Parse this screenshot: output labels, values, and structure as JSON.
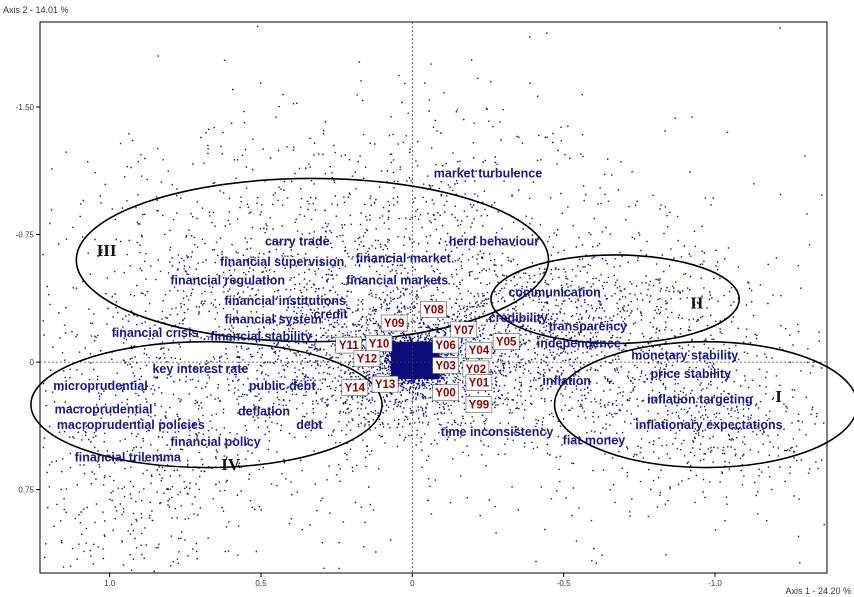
{
  "chart_data": {
    "type": "scatter",
    "xlabel": "Axis 1 - 24.20 %",
    "ylabel": "Axis 2 - 14.01 %",
    "x_ticks": [
      1.0,
      0.5,
      0,
      -0.5,
      -1.0
    ],
    "x_tick_labels": [
      "1.0",
      "0.5",
      "0",
      "-0.5",
      "-1.0"
    ],
    "y_ticks": [
      -1.5,
      -0.75,
      0,
      0.75
    ],
    "y_tick_labels": [
      "-1.50",
      "-0.75",
      "0",
      "0.75"
    ],
    "xlim": [
      1.23,
      -1.37
    ],
    "ylim": [
      -2.0,
      1.24
    ],
    "point_color": "#0b0b7a",
    "term_color": "#1a1a80",
    "year_color": "#8b0000",
    "terms": [
      {
        "label": "market turbulence",
        "x": -0.25,
        "y": -1.11
      },
      {
        "label": "carry trade",
        "x": 0.38,
        "y": -0.71
      },
      {
        "label": "herd behaviour",
        "x": -0.27,
        "y": -0.71
      },
      {
        "label": "financial supervision",
        "x": 0.43,
        "y": -0.59
      },
      {
        "label": "financial market",
        "x": 0.03,
        "y": -0.61
      },
      {
        "label": "financial regulation",
        "x": 0.61,
        "y": -0.48
      },
      {
        "label": "financial markets",
        "x": 0.05,
        "y": -0.48
      },
      {
        "label": "financial institutions",
        "x": 0.42,
        "y": -0.36
      },
      {
        "label": "communication",
        "x": -0.47,
        "y": -0.41
      },
      {
        "label": "financial system",
        "x": 0.46,
        "y": -0.25
      },
      {
        "label": "credit",
        "x": 0.27,
        "y": -0.28
      },
      {
        "label": "credibility",
        "x": -0.35,
        "y": -0.26
      },
      {
        "label": "transparency",
        "x": -0.58,
        "y": -0.21
      },
      {
        "label": "financial crisis",
        "x": 0.85,
        "y": -0.17
      },
      {
        "label": "financial stability",
        "x": 0.5,
        "y": -0.15
      },
      {
        "label": "independence",
        "x": -0.55,
        "y": -0.11
      },
      {
        "label": "monetary stability",
        "x": -0.9,
        "y": -0.04
      },
      {
        "label": "key interest rate",
        "x": 0.7,
        "y": 0.04
      },
      {
        "label": "price stability",
        "x": -0.92,
        "y": 0.07
      },
      {
        "label": "inflation",
        "x": -0.51,
        "y": 0.11
      },
      {
        "label": "microprudential",
        "x": 1.03,
        "y": 0.14
      },
      {
        "label": "public debt",
        "x": 0.43,
        "y": 0.14
      },
      {
        "label": "inflation targeting",
        "x": -0.95,
        "y": 0.22
      },
      {
        "label": "macroprudential",
        "x": 1.02,
        "y": 0.28
      },
      {
        "label": "deflation",
        "x": 0.49,
        "y": 0.29
      },
      {
        "label": "macroprudential policies",
        "x": 0.93,
        "y": 0.37
      },
      {
        "label": "debt",
        "x": 0.34,
        "y": 0.37
      },
      {
        "label": "time inconsistency",
        "x": -0.28,
        "y": 0.41
      },
      {
        "label": "inflationary expectations",
        "x": -0.98,
        "y": 0.37
      },
      {
        "label": "financial policy",
        "x": 0.65,
        "y": 0.47
      },
      {
        "label": "fiat money",
        "x": -0.6,
        "y": 0.46
      },
      {
        "label": "financial trilemma",
        "x": 0.94,
        "y": 0.56
      }
    ],
    "years": [
      {
        "label": "Y08",
        "x": -0.07,
        "y": -0.31
      },
      {
        "label": "Y09",
        "x": 0.06,
        "y": -0.23
      },
      {
        "label": "Y07",
        "x": -0.17,
        "y": -0.19
      },
      {
        "label": "Y11",
        "x": 0.21,
        "y": -0.1
      },
      {
        "label": "Y10",
        "x": 0.11,
        "y": -0.11
      },
      {
        "label": "Y06",
        "x": -0.11,
        "y": -0.1
      },
      {
        "label": "Y05",
        "x": -0.31,
        "y": -0.12
      },
      {
        "label": "Y04",
        "x": -0.22,
        "y": -0.07
      },
      {
        "label": "Y12",
        "x": 0.15,
        "y": -0.02
      },
      {
        "label": "Y03",
        "x": -0.11,
        "y": 0.02
      },
      {
        "label": "Y02",
        "x": -0.21,
        "y": 0.04
      },
      {
        "label": "Y13",
        "x": 0.09,
        "y": 0.13
      },
      {
        "label": "Y14",
        "x": 0.19,
        "y": 0.15
      },
      {
        "label": "Y01",
        "x": -0.22,
        "y": 0.12
      },
      {
        "label": "Y00",
        "x": -0.11,
        "y": 0.18
      },
      {
        "label": "Y99",
        "x": -0.22,
        "y": 0.25
      }
    ],
    "regions": [
      {
        "label": "III",
        "cx": 0.33,
        "cy": -0.6,
        "rx": 0.78,
        "ry": 0.48,
        "label_x": 1.01,
        "label_y": -0.66
      },
      {
        "label": "II",
        "cx": -0.67,
        "cy": -0.37,
        "rx": 0.41,
        "ry": 0.26,
        "label_x": -0.94,
        "label_y": -0.35
      },
      {
        "label": "I",
        "cx": -0.97,
        "cy": 0.25,
        "rx": 0.5,
        "ry": 0.37,
        "label_x": -1.21,
        "label_y": 0.2
      },
      {
        "label": "IV",
        "cx": 0.68,
        "cy": 0.25,
        "rx": 0.58,
        "ry": 0.37,
        "label_x": 0.6,
        "label_y": 0.6
      }
    ],
    "grid": false
  }
}
